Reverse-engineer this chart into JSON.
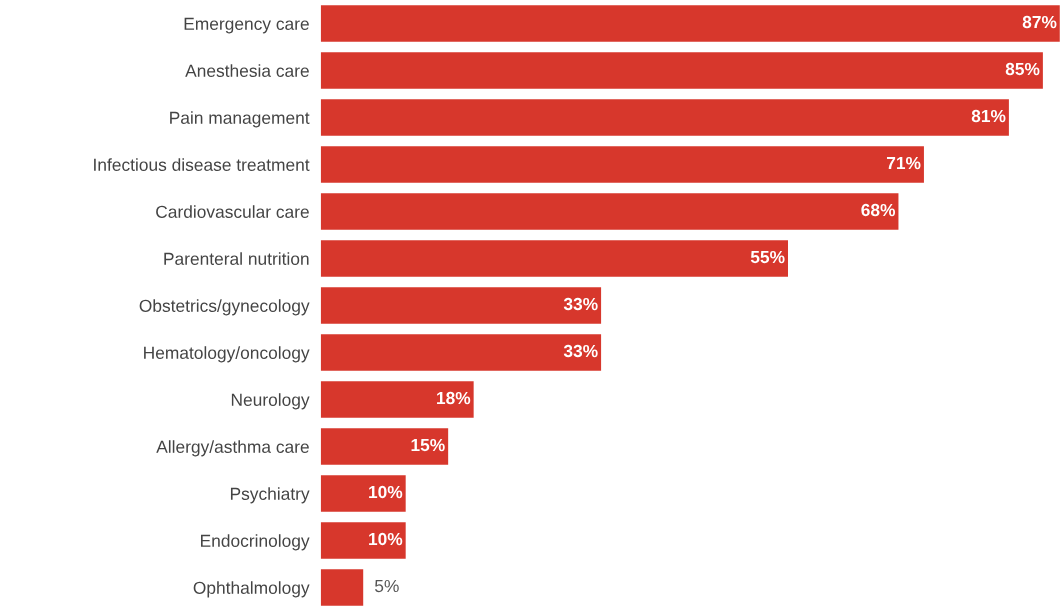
{
  "chart_data": {
    "type": "bar",
    "orientation": "horizontal",
    "color": "#d7372c",
    "categories": [
      "Emergency care",
      "Anesthesia care",
      "Pain management",
      "Infectious disease treatment",
      "Cardiovascular care",
      "Parenteral nutrition",
      "Obstetrics/gynecology",
      "Hematology/oncology",
      "Neurology",
      "Allergy/asthma care",
      "Psychiatry",
      "Endocrinology",
      "Ophthalmology"
    ],
    "values": [
      87,
      85,
      81,
      71,
      68,
      55,
      33,
      33,
      18,
      15,
      10,
      10,
      5
    ],
    "value_labels": [
      "87%",
      "85%",
      "81%",
      "71%",
      "68%",
      "55%",
      "33%",
      "33%",
      "18%",
      "15%",
      "10%",
      "10%",
      "5%"
    ]
  }
}
